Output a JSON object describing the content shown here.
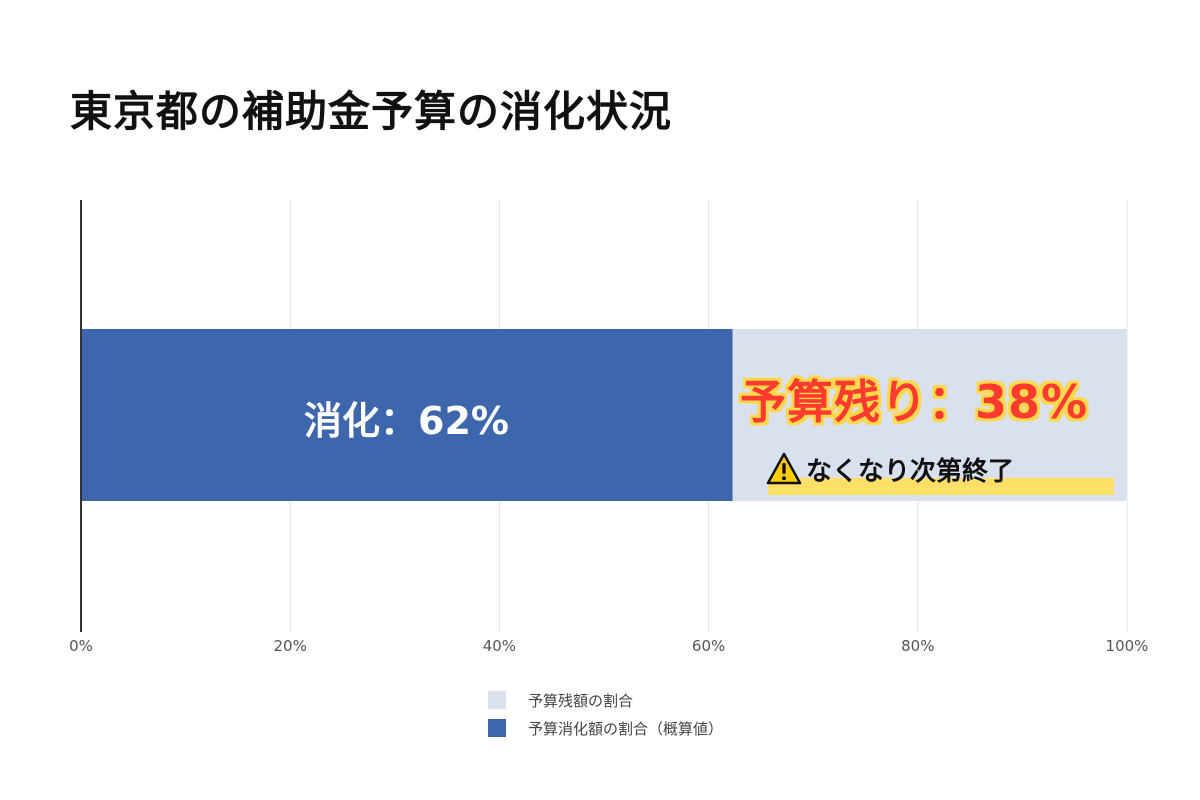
{
  "title": "東京都の補助金予算の消化状況",
  "colors": {
    "consumed": "#3d66ad",
    "remaining": "#d9e0ee",
    "remaining_label": "#ff3b30",
    "highlight": "#ffe066"
  },
  "annotations": {
    "consumed": "消化：62%",
    "remaining": "予算残り：38%",
    "warning_icon": "warning-icon",
    "warning": "なくなり次第終了"
  },
  "chart_data": {
    "type": "bar",
    "orientation": "horizontal",
    "stacked": true,
    "xlim": [
      0,
      100
    ],
    "x_ticks": [
      "0%",
      "20%",
      "40%",
      "60%",
      "80%",
      "100%"
    ],
    "grid": true,
    "legend_placement": "bottom-center",
    "series": [
      {
        "name": "予算消化額の割合（概算値）",
        "value": 62.3
      },
      {
        "name": "予算残額の割合",
        "value": 37.7
      }
    ],
    "legend": [
      {
        "label": "予算残額の割合"
      },
      {
        "label": "予算消化額の割合（概算値）"
      }
    ]
  }
}
